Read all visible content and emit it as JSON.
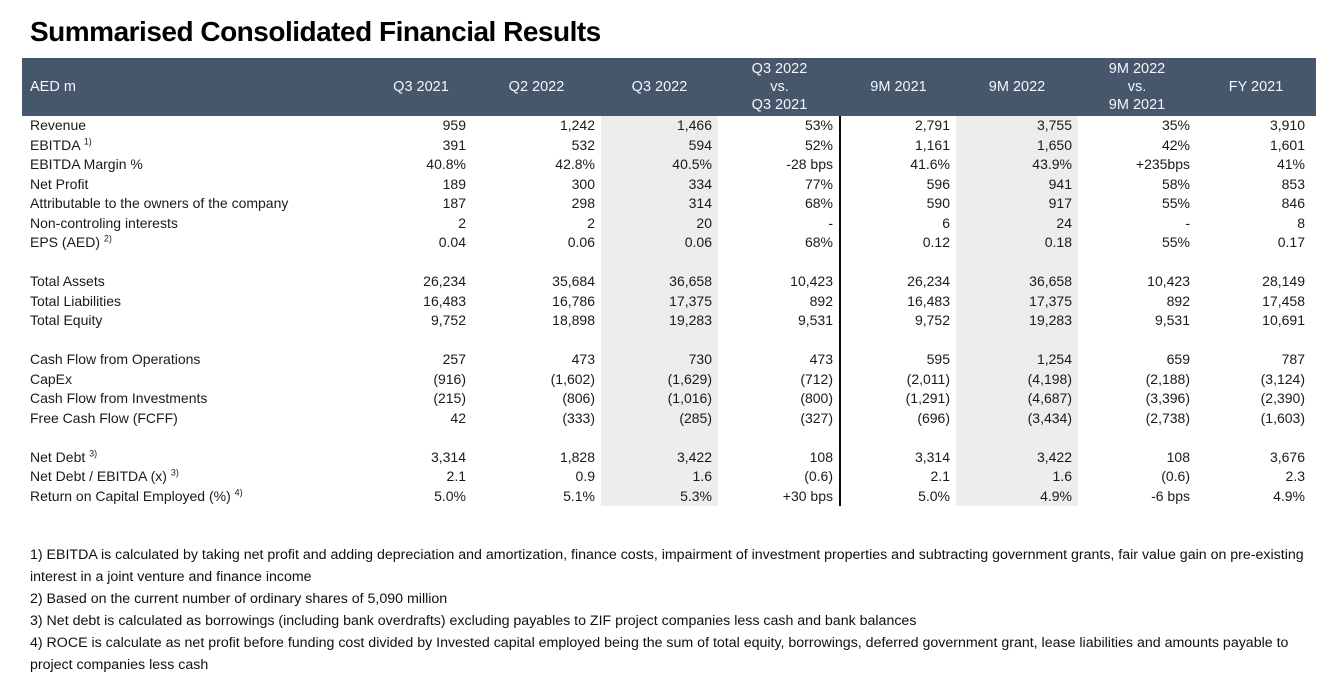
{
  "page": {
    "title": "Summarised Consolidated Financial Results"
  },
  "colors": {
    "header_bg": "#46566B",
    "shaded_column_bg": "#EDEDED",
    "divider_line": "#0B0B0B",
    "text": "#1A1A1A"
  },
  "table": {
    "unit_label": "AED m",
    "columns": [
      {
        "id": "q3-2021",
        "lines": [
          "",
          "Q3 2021",
          ""
        ],
        "shaded": false,
        "divider_after": false
      },
      {
        "id": "q2-2022",
        "lines": [
          "",
          "Q2 2022",
          ""
        ],
        "shaded": false,
        "divider_after": false
      },
      {
        "id": "q3-2022",
        "lines": [
          "",
          "Q3 2022",
          ""
        ],
        "shaded": true,
        "divider_after": false
      },
      {
        "id": "q3-2022-vs-q3-2021",
        "lines": [
          "Q3 2022",
          "vs.",
          "Q3 2021"
        ],
        "shaded": false,
        "divider_after": true
      },
      {
        "id": "9m-2021",
        "lines": [
          "",
          "9M 2021",
          ""
        ],
        "shaded": false,
        "divider_after": false
      },
      {
        "id": "9m-2022",
        "lines": [
          "",
          "9M 2022",
          ""
        ],
        "shaded": true,
        "divider_after": false
      },
      {
        "id": "9m-2022-vs-9m-2021",
        "lines": [
          "9M 2022",
          "vs.",
          "9M 2021"
        ],
        "shaded": false,
        "divider_after": false
      },
      {
        "id": "fy-2021",
        "lines": [
          "",
          "FY 2021",
          ""
        ],
        "shaded": false,
        "divider_after": false
      }
    ],
    "groups": [
      {
        "rows": [
          {
            "label": "Revenue",
            "sup": "",
            "values": [
              "959",
              "1,242",
              "1,466",
              "53%",
              "2,791",
              "3,755",
              "35%",
              "3,910"
            ]
          },
          {
            "label": "EBITDA",
            "sup": "1)",
            "values": [
              "391",
              "532",
              "594",
              "52%",
              "1,161",
              "1,650",
              "42%",
              "1,601"
            ]
          },
          {
            "label": "EBITDA Margin %",
            "sup": "",
            "values": [
              "40.8%",
              "42.8%",
              "40.5%",
              "-28 bps",
              "41.6%",
              "43.9%",
              "+235bps",
              "41%"
            ]
          },
          {
            "label": "Net Profit",
            "sup": "",
            "values": [
              "189",
              "300",
              "334",
              "77%",
              "596",
              "941",
              "58%",
              "853"
            ]
          },
          {
            "label": "Attributable to the owners of the company",
            "sup": "",
            "values": [
              "187",
              "298",
              "314",
              "68%",
              "590",
              "917",
              "55%",
              "846"
            ]
          },
          {
            "label": "Non-controling interests",
            "sup": "",
            "values": [
              "2",
              "2",
              "20",
              "-",
              "6",
              "24",
              "-",
              "8"
            ]
          },
          {
            "label": "EPS (AED)",
            "sup": "2)",
            "values": [
              "0.04",
              "0.06",
              "0.06",
              "68%",
              "0.12",
              "0.18",
              "55%",
              "0.17"
            ]
          }
        ]
      },
      {
        "rows": [
          {
            "label": "Total Assets",
            "sup": "",
            "values": [
              "26,234",
              "35,684",
              "36,658",
              "10,423",
              "26,234",
              "36,658",
              "10,423",
              "28,149"
            ]
          },
          {
            "label": "Total Liabilities",
            "sup": "",
            "values": [
              "16,483",
              "16,786",
              "17,375",
              "892",
              "16,483",
              "17,375",
              "892",
              "17,458"
            ]
          },
          {
            "label": "Total Equity",
            "sup": "",
            "values": [
              "9,752",
              "18,898",
              "19,283",
              "9,531",
              "9,752",
              "19,283",
              "9,531",
              "10,691"
            ]
          }
        ]
      },
      {
        "rows": [
          {
            "label": "Cash Flow from Operations",
            "sup": "",
            "values": [
              "257",
              "473",
              "730",
              "473",
              "595",
              "1,254",
              "659",
              "787"
            ]
          },
          {
            "label": "CapEx",
            "sup": "",
            "values": [
              "(916)",
              "(1,602)",
              "(1,629)",
              "(712)",
              "(2,011)",
              "(4,198)",
              "(2,188)",
              "(3,124)"
            ]
          },
          {
            "label": "Cash Flow from Investments",
            "sup": "",
            "values": [
              "(215)",
              "(806)",
              "(1,016)",
              "(800)",
              "(1,291)",
              "(4,687)",
              "(3,396)",
              "(2,390)"
            ]
          },
          {
            "label": "Free Cash Flow (FCFF)",
            "sup": "",
            "values": [
              "42",
              "(333)",
              "(285)",
              "(327)",
              "(696)",
              "(3,434)",
              "(2,738)",
              "(1,603)"
            ]
          }
        ]
      },
      {
        "rows": [
          {
            "label": "Net Debt",
            "sup": "3)",
            "values": [
              "3,314",
              "1,828",
              "3,422",
              "108",
              "3,314",
              "3,422",
              "108",
              "3,676"
            ]
          },
          {
            "label": "Net Debt / EBITDA (x)",
            "sup": "3)",
            "values": [
              "2.1",
              "0.9",
              "1.6",
              "(0.6)",
              "2.1",
              "1.6",
              "(0.6)",
              "2.3"
            ]
          },
          {
            "label": "Return on Capital Employed (%)",
            "sup": "4)",
            "values": [
              "5.0%",
              "5.1%",
              "5.3%",
              "+30 bps",
              "5.0%",
              "4.9%",
              "-6 bps",
              "4.9%"
            ]
          }
        ]
      }
    ],
    "footnotes": [
      "1) EBITDA is calculated by taking net profit and adding depreciation and amortization, finance costs, impairment of investment properties and subtracting government grants, fair value gain on pre-existing interest in a joint venture and finance income",
      "2) Based on the current number of ordinary shares of 5,090 million",
      "3) Net debt is calculated as borrowings (including bank overdrafts) excluding payables to ZIF project companies less cash and bank balances",
      "4) ROCE is calculate as net profit before funding cost divided by Invested capital employed being the sum of total equity, borrowings, deferred government grant, lease liabilities and amounts payable to project companies less cash"
    ]
  }
}
